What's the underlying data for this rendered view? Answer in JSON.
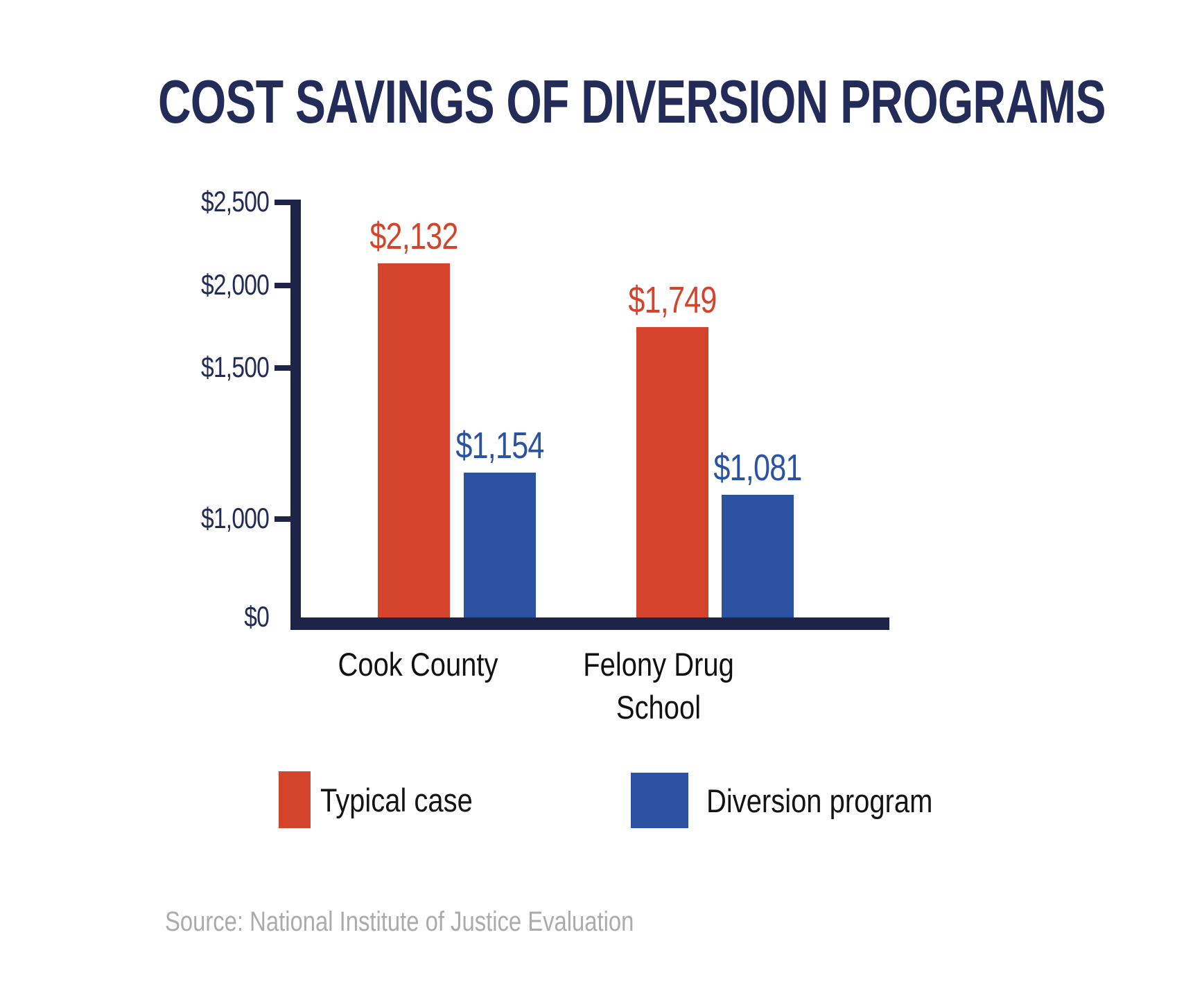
{
  "title": "COST SAVINGS OF DIVERSION PROGRAMS",
  "source": "Source: National Institute of Justice Evaluation",
  "colors": {
    "typical_case_red": "#D4442C",
    "diversion_blue": "#2B53A1",
    "axis_navy": "#1E2448",
    "title_navy": "#232B59",
    "tick_label_navy": "#232A55",
    "category_black": "#111111",
    "source_gray": "#ABABAB"
  },
  "legend": {
    "items": [
      {
        "label": "Typical case",
        "color": "#D4442C"
      },
      {
        "label": "Diversion program",
        "color": "#2B53A1"
      }
    ]
  },
  "chart_data": {
    "type": "bar",
    "title": "COST SAVINGS OF DIVERSION PROGRAMS",
    "categories": [
      "Cook County",
      "Felony Drug School"
    ],
    "series": [
      {
        "name": "Typical case",
        "color": "#D4442C",
        "values": [
          2132,
          1749
        ],
        "value_labels": [
          "$2,132",
          "$1,749"
        ]
      },
      {
        "name": "Diversion program",
        "color": "#2B53A1",
        "values": [
          1154,
          1081
        ],
        "value_labels": [
          "$1,154",
          "$1,081"
        ]
      }
    ],
    "y_ticks": [
      {
        "label": "$2,500",
        "value": 2500
      },
      {
        "label": "$2,000",
        "value": 2000
      },
      {
        "label": "$1,500",
        "value": 1500
      },
      {
        "label": "$1,000",
        "value": 1000
      },
      {
        "label": "$0",
        "value": 0
      }
    ],
    "ylim": [
      0,
      2500
    ],
    "grid": false,
    "legend_position": "bottom",
    "xlabel": "",
    "ylabel": "",
    "axis_anchors": [
      {
        "value": 0,
        "y": 891
      },
      {
        "value": 1000,
        "y": 749
      },
      {
        "value": 1500,
        "y": 531
      },
      {
        "value": 2000,
        "y": 412
      },
      {
        "value": 2500,
        "y": 292
      }
    ]
  }
}
